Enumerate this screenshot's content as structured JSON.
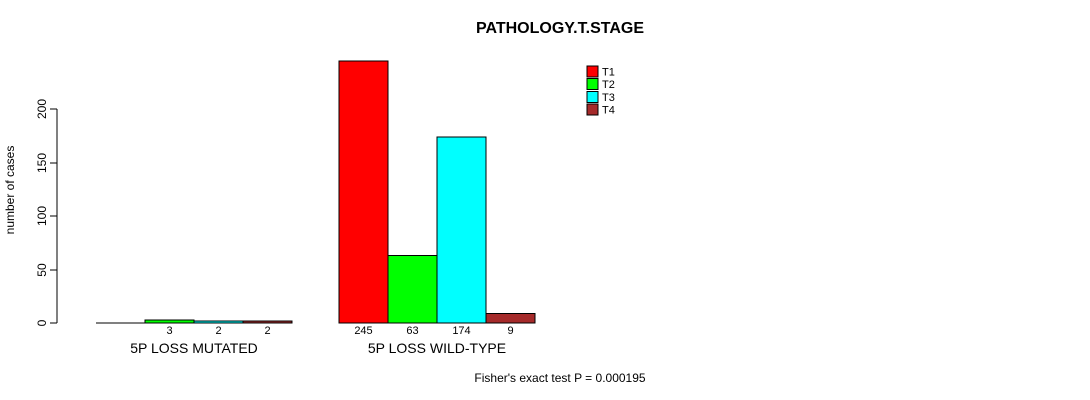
{
  "chart_data": {
    "type": "bar",
    "title": "PATHOLOGY.T.STAGE",
    "ylabel": "number of cases",
    "xlabel": "",
    "categories": [
      "5P LOSS MUTATED",
      "5P LOSS WILD-TYPE"
    ],
    "series": [
      {
        "name": "T1",
        "color": "#ff0000",
        "values": [
          0,
          245
        ]
      },
      {
        "name": "T2",
        "color": "#00ff00",
        "values": [
          3,
          63
        ]
      },
      {
        "name": "T3",
        "color": "#00ffff",
        "values": [
          2,
          174
        ]
      },
      {
        "name": "T4",
        "color": "#a52a2a",
        "values": [
          2,
          9
        ]
      }
    ],
    "bar_value_labels": [
      [
        "",
        "3",
        "2",
        "2"
      ],
      [
        "245",
        "63",
        "174",
        "9"
      ]
    ],
    "yticks": [
      0,
      50,
      100,
      150,
      200
    ],
    "ylim": [
      0,
      250
    ],
    "grid": false,
    "bar_border_color": "#000000",
    "legend_position": "top-right",
    "legend_labels": [
      "T1",
      "T2",
      "T3",
      "T4"
    ],
    "annotation": "Fisher's exact test P = 0.000195"
  }
}
